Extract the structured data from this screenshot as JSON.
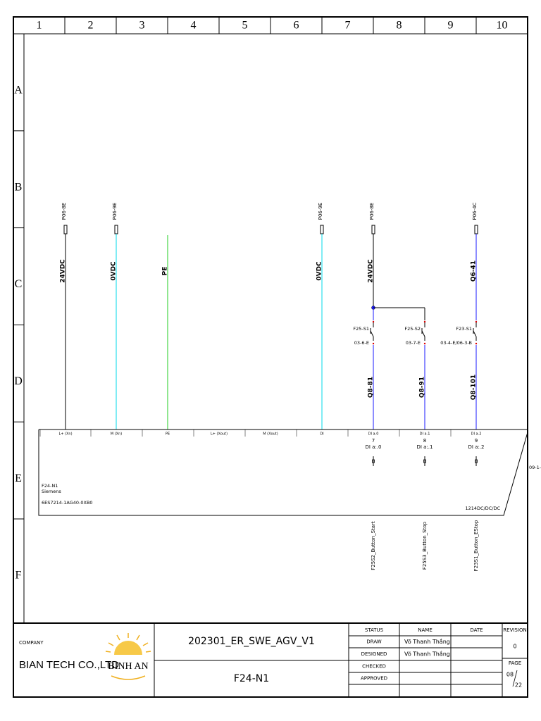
{
  "columns": [
    "1",
    "2",
    "3",
    "4",
    "5",
    "6",
    "7",
    "8",
    "9",
    "10"
  ],
  "rows": [
    "A",
    "B",
    "C",
    "D",
    "E",
    "F"
  ],
  "wires": [
    {
      "ref": "P06-8E",
      "name": "24VDC",
      "color": "#000000"
    },
    {
      "ref": "P06-9E",
      "name": "0VDC",
      "color": "#00d8e8"
    },
    {
      "name": "PE",
      "color": "#22cc22"
    },
    {
      "ref": "P06-9E",
      "name": "0VDC",
      "color": "#00d8e8"
    },
    {
      "ref": "P06-8E",
      "name": "24VDC",
      "color": "#000000"
    },
    {
      "ref": "P06-4C",
      "name": "Q6-41",
      "color": "#1a1aff"
    }
  ],
  "switches": [
    {
      "name": "F25-S1",
      "ref": "03-6-E"
    },
    {
      "name": "F25-S2",
      "ref": "03-7-E"
    },
    {
      "name": "F23-S1",
      "ref": "03-4-E/06-3-B"
    }
  ],
  "wire_numbers": [
    "Q8-81",
    "Q8-91",
    "Q8-101"
  ],
  "plc": {
    "terminals": [
      "L+ (Xn)",
      "M (Xn)",
      "PE",
      "L+ (Xout)",
      "M (Xout)",
      "DI",
      "DI a.0",
      "DI a.1",
      "DI a.2"
    ],
    "inputs": [
      {
        "number": "7",
        "address": "DI a:.0"
      },
      {
        "number": "8",
        "address": "DI a:.1"
      },
      {
        "number": "9",
        "address": "DI a:.2"
      }
    ],
    "name": "F24-N1",
    "maker": "Siemens",
    "part": "6ES7214-1AG40-0XB0",
    "model": "1214DC/DC/DC",
    "cross_ref": "09-1-F"
  },
  "buttons": [
    "F25S2_Button_Start",
    "F25S3_Button_Stop",
    "F23S1_Button_EStop"
  ],
  "title_block": {
    "company_label": "COMPANY",
    "company": "BIAN TECH CO.,LTD",
    "logo": "BINH AN",
    "project": "202301_ER_SWE_AGV_V1",
    "drawing": "F24-N1",
    "headers": [
      "STATUS",
      "NAME",
      "DATE"
    ],
    "table": [
      [
        "DRAW",
        "Võ Thanh Thắng"
      ],
      [
        "DESIGNED",
        "Võ Thanh Thắng"
      ],
      [
        "CHECKED"
      ],
      [
        "APPROVED"
      ]
    ],
    "revision_label": "REVISION",
    "revision": "0",
    "page_label": "PAGE",
    "page": "08",
    "pages": "22"
  }
}
